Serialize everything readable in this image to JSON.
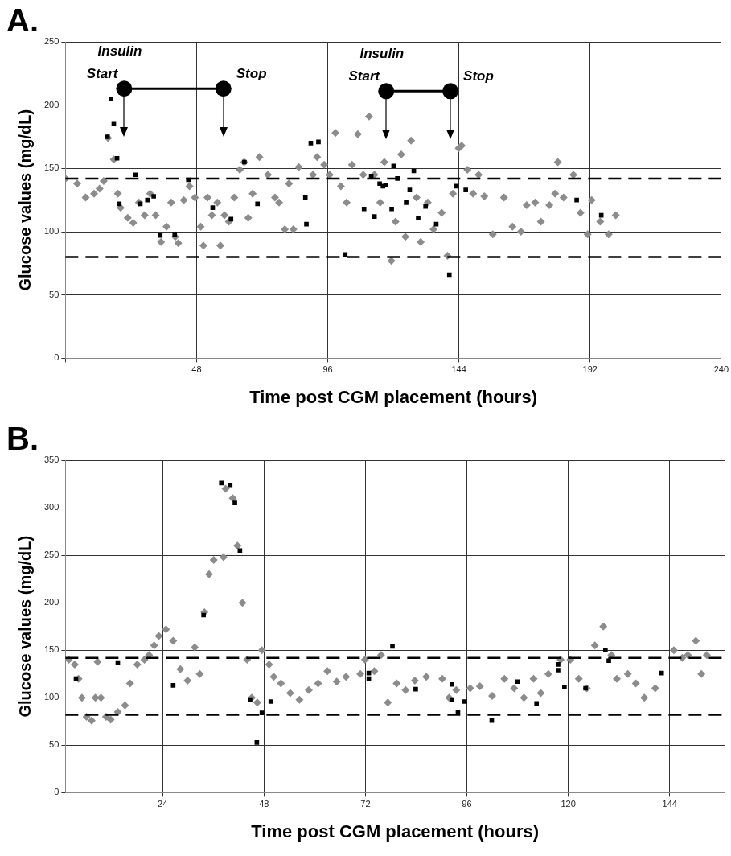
{
  "chart_data": [
    {
      "type": "scatter",
      "title": "A.",
      "xlabel": "Time post CGM placement (hours)",
      "ylabel": "Glucose values (mg/dL)",
      "xlim": [
        0,
        240
      ],
      "xticks": [
        {
          "value": 0,
          "label": null
        },
        48,
        96,
        144,
        192,
        240
      ],
      "ylim": [
        0,
        250
      ],
      "yticks": [
        0,
        50,
        100,
        150,
        200,
        250
      ],
      "grid": true,
      "legend": false,
      "series": [
        {
          "type": "scatter",
          "color": "#8c8c8c",
          "marker": "diamond",
          "x": [
            0,
            4.3,
            7.4,
            10.5,
            12.5,
            14,
            15.6,
            17.7,
            19.2,
            20.2,
            22.8,
            24.8,
            26.9,
            29,
            31,
            33,
            35,
            37,
            38.7,
            40.2,
            41.3,
            43.3,
            45.4,
            47.4,
            49.5,
            50.5,
            52,
            53.6,
            55.6,
            56.7,
            58.2,
            59.8,
            61.8,
            63.8,
            65.4,
            66.9,
            68.5,
            71,
            74.1,
            76.7,
            78.2,
            80.3,
            81.8,
            83.4,
            85.4,
            90.6,
            92.1,
            94.7,
            96.7,
            98.8,
            100.8,
            102.9,
            104.9,
            107,
            109,
            111.1,
            113.1,
            115.2,
            116.7,
            119.3,
            120.8,
            122.9,
            124.4,
            126.5,
            128.5,
            130,
            132.6,
            134.7,
            137.7,
            139.8,
            141.8,
            143.9,
            145,
            147.1,
            149.2,
            151.2,
            153.3,
            156.4,
            160.5,
            163.6,
            166.7,
            168.8,
            171.9,
            174,
            177.1,
            179.2,
            180.2,
            182.3,
            185.9,
            188.5,
            191.1,
            192.6,
            195.7,
            198.8,
            201.4
          ],
          "values": [
            142,
            138,
            127,
            130,
            134,
            140,
            174,
            157,
            130,
            119,
            111,
            107,
            123,
            113,
            130,
            113,
            92,
            104,
            123,
            96,
            91,
            125,
            136,
            127,
            104,
            89,
            127,
            113,
            123,
            89,
            113,
            108,
            127,
            149,
            155,
            111,
            130,
            159,
            145,
            127,
            123,
            102,
            138,
            102,
            151,
            145,
            159,
            153,
            145,
            178,
            136,
            123,
            153,
            177,
            145,
            191,
            145,
            123,
            155,
            77,
            108,
            161,
            96,
            172,
            127,
            92,
            123,
            102,
            115,
            81,
            130,
            166,
            168,
            149,
            130,
            145,
            128,
            98,
            127,
            104,
            100,
            121,
            123,
            108,
            121,
            130,
            155,
            127,
            145,
            115,
            98,
            125,
            108,
            98,
            113
          ]
        },
        {
          "type": "scatter",
          "color": "#000000",
          "marker": "square",
          "x": [
            15.4,
            16.7,
            17.7,
            18.9,
            19.7,
            25.6,
            27.4,
            30,
            32.3,
            34.7,
            40,
            45,
            53.9,
            60.6,
            65.5,
            70.3,
            87.8,
            88.2,
            89.8,
            92.6,
            102.4,
            109.3,
            111.9,
            113.1,
            115,
            116.2,
            117.2,
            119.4,
            120.1,
            121.5,
            124.7,
            126,
            127.5,
            129.1,
            131.8,
            135.7,
            140.5,
            143.1,
            146.5,
            187.1,
            196.1
          ],
          "values": [
            175,
            205,
            185,
            158,
            122,
            145,
            122,
            125,
            128,
            97,
            98,
            141,
            119,
            110,
            155,
            122,
            127,
            106,
            170,
            171,
            82,
            118,
            144,
            112,
            138,
            136,
            137,
            118,
            152,
            142,
            123,
            133,
            148,
            111,
            120,
            106,
            66,
            136,
            133,
            125,
            113
          ]
        },
        {
          "type": "line",
          "color": "#000000",
          "marker": "circle",
          "line_style": "solid",
          "x": [
            21.5,
            57.8
          ],
          "values": [
            213,
            213
          ]
        },
        {
          "type": "line",
          "color": "#000000",
          "marker": "circle",
          "line_style": "solid",
          "x": [
            117.4,
            140.9
          ],
          "values": [
            211,
            211
          ]
        }
      ],
      "ref_lines": [
        {
          "axis": "y",
          "value": 142,
          "color": "#000000",
          "line_style": "dashed"
        },
        {
          "axis": "y",
          "value": 80,
          "color": "#000000",
          "line_style": "dashed"
        }
      ],
      "annotations": [
        {
          "text": "Start",
          "x": 21.5,
          "y": 213
        },
        {
          "text": "Insulin",
          "x": 21.5,
          "y": 213
        },
        {
          "text": "Stop",
          "x": 57.8,
          "y": 213
        },
        {
          "text": "Start",
          "x": 117.4,
          "y": 211
        },
        {
          "text": "Insulin",
          "x": 117.4,
          "y": 211
        },
        {
          "text": "Stop",
          "x": 140.9,
          "y": 211
        }
      ]
    },
    {
      "type": "scatter",
      "title": "B.",
      "xlabel": "Time post CGM placement (hours)",
      "ylabel": "Glucose values (mg/dL)",
      "xlim": [
        1,
        157
      ],
      "xticks": [
        24,
        48,
        72,
        96,
        120,
        144
      ],
      "ylim": [
        0,
        350
      ],
      "yticks": [
        0,
        50,
        100,
        150,
        200,
        250,
        300,
        350
      ],
      "grid": true,
      "legend": false,
      "series": [
        {
          "type": "scatter",
          "color": "#8c8c8c",
          "marker": "diamond",
          "x": [
            1.8,
            3.2,
            4.1,
            4.9,
            6,
            7.2,
            8.1,
            8.6,
            9.4,
            10.6,
            11.7,
            13.4,
            15.1,
            16.3,
            18,
            19.7,
            20.8,
            22,
            23.1,
            24.8,
            26.5,
            28.2,
            29.9,
            31.6,
            32.8,
            33.9,
            35,
            36.1,
            38.4,
            38.9,
            40.6,
            41.7,
            42.9,
            44,
            45.1,
            46.4,
            47.5,
            49.2,
            50.3,
            52,
            54.2,
            56.4,
            58.6,
            60.8,
            63,
            65.2,
            67.4,
            70.8,
            71.9,
            74.1,
            75.7,
            77.3,
            79.4,
            81.5,
            83.7,
            86.4,
            90.2,
            91.8,
            93.5,
            96.8,
            99.1,
            102,
            104.9,
            107.2,
            109.5,
            111.8,
            113.5,
            115.3,
            118.2,
            120.5,
            122.5,
            124.4,
            126.3,
            128.3,
            130.2,
            131.5,
            134.1,
            136,
            138,
            140.6,
            145,
            147,
            148.3,
            150.2,
            151.5,
            152.8
          ],
          "values": [
            140,
            135,
            120,
            100,
            80,
            76,
            100,
            138,
            100,
            80,
            77,
            85,
            92,
            115,
            135,
            140,
            145,
            155,
            165,
            172,
            160,
            130,
            118,
            153,
            125,
            190,
            230,
            245,
            248,
            320,
            310,
            260,
            200,
            140,
            100,
            95,
            150,
            135,
            122,
            115,
            105,
            98,
            108,
            115,
            128,
            117,
            122,
            125,
            140,
            128,
            145,
            95,
            115,
            108,
            118,
            122,
            120,
            100,
            108,
            110,
            112,
            102,
            120,
            110,
            100,
            120,
            105,
            125,
            140,
            140,
            120,
            110,
            155,
            175,
            145,
            120,
            125,
            115,
            100,
            110,
            150,
            142,
            145,
            160,
            125,
            145
          ]
        },
        {
          "type": "scatter",
          "color": "#000000",
          "marker": "square",
          "x": [
            3.5,
            13.4,
            26.5,
            33.7,
            37.9,
            40,
            41.1,
            42.3,
            44.7,
            46.3,
            47.5,
            49.6,
            72.8,
            72.8,
            78.4,
            83.9,
            92.5,
            92.5,
            93.9,
            95.5,
            101.9,
            108,
            112.5,
            117.6,
            117.6,
            119.1,
            124.1,
            128.8,
            129.6,
            142.1
          ],
          "values": [
            120,
            137,
            113,
            187,
            326,
            324,
            305,
            255,
            98,
            53,
            84,
            96,
            126,
            120,
            154,
            109,
            114,
            98,
            85,
            96,
            76,
            117,
            94,
            135,
            129,
            111,
            110,
            150,
            139,
            126
          ]
        }
      ],
      "ref_lines": [
        {
          "axis": "y",
          "value": 142,
          "color": "#000000",
          "line_style": "dashed"
        },
        {
          "axis": "y",
          "value": 82,
          "color": "#000000",
          "line_style": "dashed"
        }
      ]
    }
  ]
}
